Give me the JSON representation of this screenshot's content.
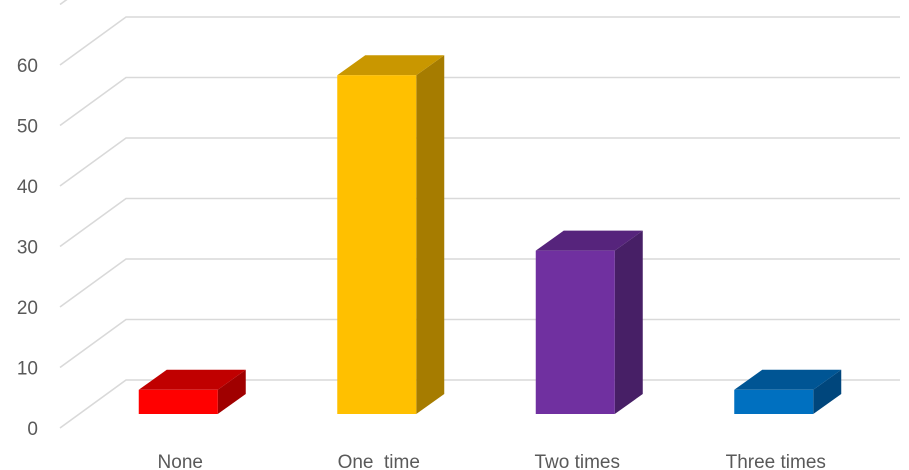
{
  "chart_data": {
    "type": "bar",
    "style": "3d-column",
    "categories": [
      "None",
      "One  time",
      "Two times",
      "Three times"
    ],
    "values": [
      4,
      56,
      27,
      4
    ],
    "ylim": [
      0,
      70
    ],
    "yticks": [
      0,
      10,
      20,
      30,
      40,
      50,
      60
    ],
    "grid": true,
    "legend": "none",
    "colors": [
      {
        "front": "#ff0000",
        "top": "#c00000",
        "side": "#a00000"
      },
      {
        "front": "#ffc000",
        "top": "#c99700",
        "side": "#a67c00"
      },
      {
        "front": "#7030a0",
        "top": "#56247c",
        "side": "#471f66"
      },
      {
        "front": "#0070c0",
        "top": "#005594",
        "side": "#00467c"
      }
    ],
    "gridColor": "#d9d9d9",
    "textColor": "#595959"
  }
}
